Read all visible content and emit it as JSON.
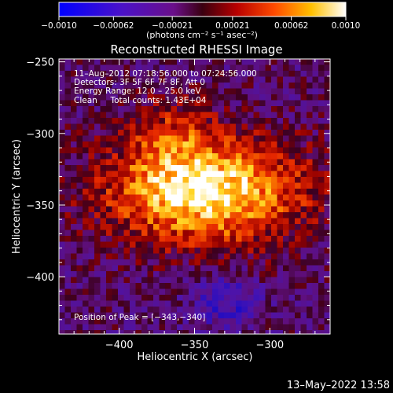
{
  "chart_data": {
    "type": "heatmap",
    "title": "Reconstructed RHESSI Image",
    "xlabel": "Heliocentric X (arcsec)",
    "ylabel": "Heliocentric Y (arcsec)",
    "xlim": [
      -440,
      -260
    ],
    "ylim": [
      -440,
      -248
    ],
    "x_ticks": [
      -400,
      -350,
      -300
    ],
    "y_ticks": [
      -250,
      -300,
      -350,
      -400
    ],
    "x_tick_labels": [
      "−400",
      "−350",
      "−300"
    ],
    "y_tick_labels": [
      "−250",
      "−300",
      "−350",
      "−400"
    ],
    "colorbar": {
      "min": -0.001,
      "max": 0.001,
      "ticks": [
        -0.001,
        -0.00062,
        -0.00021,
        0.00021,
        0.00062,
        0.001
      ],
      "tick_labels": [
        "−0.0010",
        "−0.00062",
        "−0.00021",
        "0.00021",
        "0.00062",
        "0.0010"
      ],
      "unit_label": "(photons cm⁻² s⁻¹ asec⁻²)",
      "colormap": "blue-purple-red-yellow-white"
    },
    "annotations": [
      "11–Aug–2012 07:18:56.000 to 07:24:56.000",
      "Detectors: 3F 5F 6F 7F 8F, Att 0",
      "Energy Range: 12.0 – 25.0 keV",
      "Clean     Total counts: 1.43E+04"
    ],
    "peak_label": "Position of Peak = [−343,−340]",
    "peak": {
      "x": -343,
      "y": -340
    },
    "grid": false,
    "legend": "none"
  },
  "footer": {
    "timestamp": "13–May–2022 13:58"
  }
}
